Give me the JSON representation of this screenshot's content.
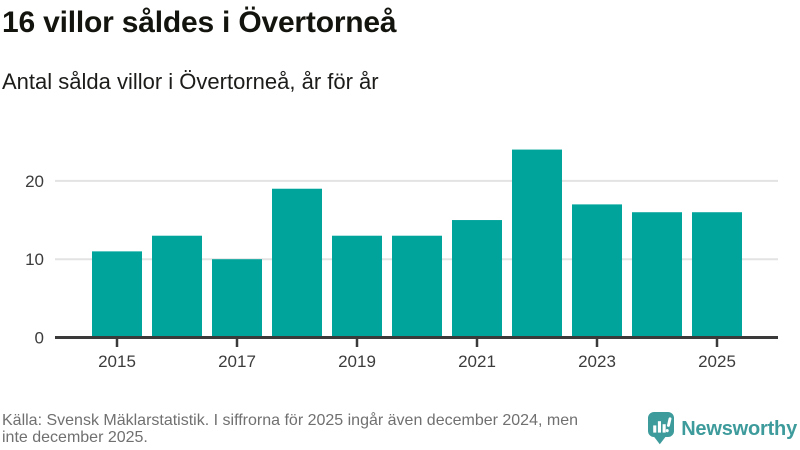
{
  "header": {
    "title": "16 villor såldes i Övertorneå",
    "subtitle": "Antal sålda villor i Övertorneå, år för år"
  },
  "chart_data": {
    "type": "bar",
    "categories": [
      "2015",
      "2016",
      "2017",
      "2018",
      "2019",
      "2020",
      "2021",
      "2022",
      "2023",
      "2024",
      "2025"
    ],
    "values": [
      11,
      13,
      10,
      19,
      13,
      13,
      15,
      24,
      17,
      16,
      16
    ],
    "title": "16 villor såldes i Övertorneå",
    "xlabel": "",
    "ylabel": "",
    "ylim": [
      0,
      25
    ],
    "yticks": [
      0,
      10,
      20
    ],
    "xtick_labels": [
      "2015",
      "2017",
      "2019",
      "2021",
      "2023",
      "2025"
    ],
    "grid": "horizontal",
    "legend": "none"
  },
  "footer": {
    "source_line1": "Källa: Svensk Mäklarstatistik. I siffrorna för 2025 ingår även december 2024, men",
    "source_line2": "inte december 2025.",
    "logo_text": "Newsworthy"
  },
  "colors": {
    "bar": "#00a49b",
    "logo": "#3e9b9c",
    "grid": "#e3e3e3",
    "axis": "#3a3a3a",
    "tick_label": "#3c3c3c",
    "footer_text": "#707070"
  }
}
